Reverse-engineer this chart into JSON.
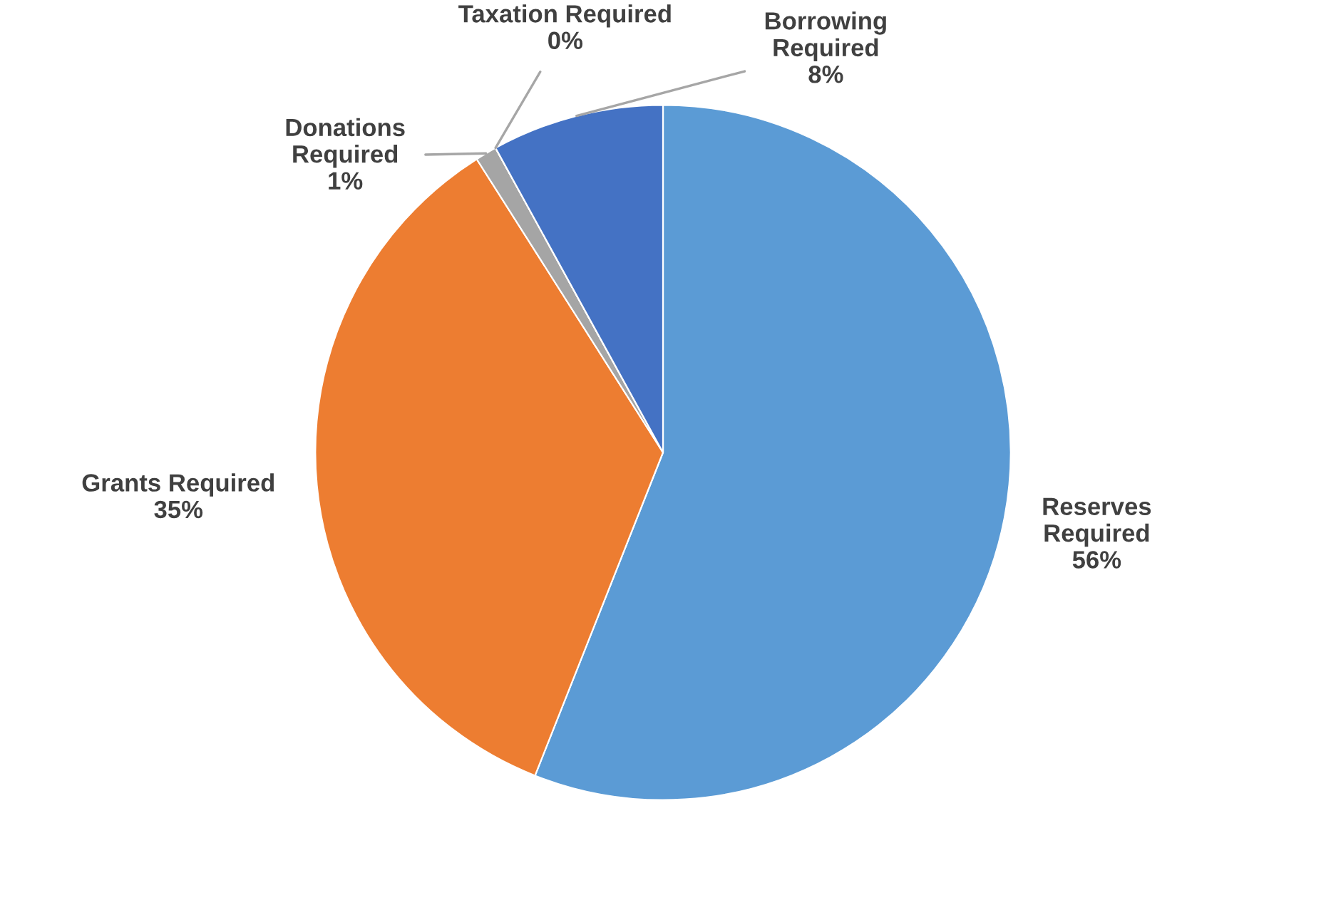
{
  "chart_data": {
    "type": "pie",
    "categories": [
      "Reserves Required",
      "Grants Required",
      "Donations Required",
      "Taxation Required",
      "Borrowing Required"
    ],
    "values": [
      56,
      35,
      1,
      0,
      8
    ],
    "value_labels": [
      "56%",
      "35%",
      "1%",
      "0%",
      "8%"
    ],
    "colors": [
      "#5b9bd5",
      "#ed7d31",
      "#a5a5a5",
      "#ffc000",
      "#4472c4"
    ],
    "legend": false
  }
}
